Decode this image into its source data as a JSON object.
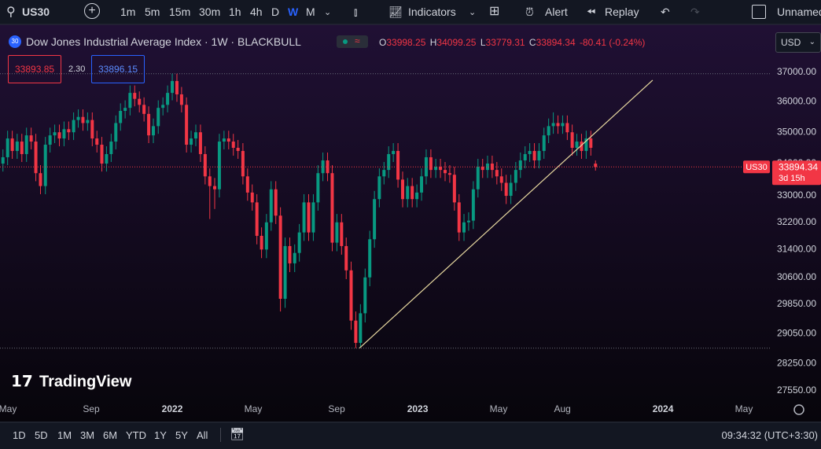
{
  "toolbar": {
    "symbol": "US30",
    "intervals": [
      "1m",
      "5m",
      "15m",
      "30m",
      "1h",
      "4h",
      "D",
      "W",
      "M"
    ],
    "indicators": "Indicators",
    "alert": "Alert",
    "replay": "Replay",
    "layout": "Unnamed"
  },
  "legend": {
    "badge": "30",
    "title": "Dow Jones Industrial Average Index · 1W · BLACKBULL",
    "o": "O",
    "h": "H",
    "l": "L",
    "c": "C",
    "change": "-80.41 (-0.24%)",
    "sell": "33893.85",
    "spread": "2.30",
    "buy": "33896.15",
    "currency": "USD"
  },
  "bottom": {
    "ranges": [
      "1D",
      "5D",
      "1M",
      "3M",
      "6M",
      "YTD",
      "1Y",
      "5Y",
      "All"
    ],
    "clock": "09:34:32 (UTC+3:30)"
  },
  "logo": "TradingView",
  "chart_data": {
    "type": "candlestick",
    "log": true,
    "up_color": "#089981",
    "down_color": "#f23645",
    "symbol_tag": "US30",
    "countdown": "3d 15h",
    "xlim": [
      2021.298,
      2024.503
    ],
    "ylim": [
      27330,
      38480
    ],
    "xticks": [
      {
        "value": 2021.33,
        "label": "May"
      },
      {
        "value": 2021.67,
        "label": "Sep"
      },
      2022,
      {
        "value": 2022.33,
        "label": "May"
      },
      {
        "value": 2022.67,
        "label": "Sep"
      },
      2023,
      {
        "value": 2023.33,
        "label": "May"
      },
      {
        "value": 2023.59,
        "label": "Aug"
      },
      2024,
      {
        "value": 2024.33,
        "label": "May"
      }
    ],
    "yticks": [
      {
        "value": 27550,
        "label": "27550.00"
      },
      {
        "value": 28250,
        "label": "28250.00"
      },
      {
        "value": 29050,
        "label": "29050.00"
      },
      {
        "value": 29850,
        "label": "29850.00"
      },
      {
        "value": 30600,
        "label": "30600.00"
      },
      {
        "value": 31400,
        "label": "31400.00"
      },
      {
        "value": 32200,
        "label": "32200.00"
      },
      {
        "value": 33000,
        "label": "33000.00"
      },
      {
        "value": 34000,
        "label": "34000.00"
      },
      {
        "value": 35000,
        "label": "35000.00"
      },
      {
        "value": 36000,
        "label": "36000.00"
      },
      {
        "value": 37000,
        "label": "37000.00"
      }
    ],
    "hlines": [
      36950,
      28660
    ],
    "trendline": {
      "x": [
        2022.763,
        2023.958
      ],
      "y": [
        28660,
        36730
      ],
      "color": "#e8d9a0"
    },
    "x": [
      2021.31,
      2021.329,
      2021.348,
      2021.368,
      2021.387,
      2021.406,
      2021.425,
      2021.444,
      2021.463,
      2021.483,
      2021.502,
      2021.521,
      2021.54,
      2021.559,
      2021.578,
      2021.598,
      2021.617,
      2021.636,
      2021.655,
      2021.674,
      2021.693,
      2021.713,
      2021.732,
      2021.751,
      2021.77,
      2021.789,
      2021.808,
      2021.828,
      2021.847,
      2021.866,
      2021.885,
      2021.904,
      2021.923,
      2021.943,
      2021.962,
      2021.981,
      2022.0,
      2022.019,
      2022.038,
      2022.058,
      2022.077,
      2022.096,
      2022.115,
      2022.134,
      2022.153,
      2022.173,
      2022.192,
      2022.211,
      2022.23,
      2022.249,
      2022.268,
      2022.288,
      2022.307,
      2022.326,
      2022.345,
      2022.364,
      2022.384,
      2022.403,
      2022.422,
      2022.441,
      2022.46,
      2022.479,
      2022.499,
      2022.518,
      2022.537,
      2022.556,
      2022.575,
      2022.594,
      2022.614,
      2022.633,
      2022.652,
      2022.671,
      2022.69,
      2022.709,
      2022.729,
      2022.748,
      2022.767,
      2022.786,
      2022.805,
      2022.824,
      2022.844,
      2022.863,
      2022.882,
      2022.901,
      2022.92,
      2022.939,
      2022.959,
      2022.978,
      2022.997,
      2023.016,
      2023.035,
      2023.054,
      2023.074,
      2023.093,
      2023.112,
      2023.131,
      2023.15,
      2023.169,
      2023.189,
      2023.208,
      2023.227,
      2023.246,
      2023.265,
      2023.285,
      2023.304,
      2023.323,
      2023.342,
      2023.361,
      2023.38,
      2023.4,
      2023.419,
      2023.438,
      2023.457,
      2023.476,
      2023.495,
      2023.515,
      2023.534,
      2023.553,
      2023.572,
      2023.591,
      2023.61,
      2023.63,
      2023.649,
      2023.668,
      2023.687,
      2023.706,
      2023.725
    ],
    "open": [
      34000,
      34200,
      34800,
      34400,
      34700,
      34300,
      34900,
      34700,
      33700,
      33300,
      34600,
      34900,
      35000,
      34800,
      35100,
      35000,
      35400,
      35500,
      35300,
      35400,
      34800,
      34600,
      34000,
      34300,
      34700,
      35300,
      35700,
      35800,
      36300,
      36100,
      35900,
      35600,
      34900,
      35200,
      35800,
      35900,
      36300,
      36700,
      36250,
      35900,
      34600,
      34800,
      35000,
      34300,
      33600,
      33300,
      33200,
      34700,
      34800,
      34700,
      34500,
      34400,
      33600,
      33100,
      32800,
      31800,
      31400,
      32200,
      33200,
      32400,
      30000,
      31500,
      31000,
      31300,
      31900,
      32800,
      31900,
      32800,
      33700,
      34100,
      33700,
      31600,
      32200,
      31500,
      30800,
      29400,
      28800,
      29600,
      30600,
      31700,
      32900,
      33600,
      33800,
      34300,
      34400,
      33500,
      32900,
      33300,
      32900,
      33100,
      33600,
      34200,
      33800,
      33900,
      33800,
      33700,
      33650,
      32800,
      31900,
      32200,
      32250,
      33200,
      33900,
      33800,
      34000,
      33800,
      33600,
      33400,
      33000,
      33400,
      33800,
      34100,
      34300,
      34400,
      34100,
      34400,
      34900,
      35200,
      35300,
      35200,
      35300,
      35000,
      34500,
      34700,
      34400,
      34800,
      33998.25
    ],
    "high": [
      34450,
      35050,
      35050,
      34950,
      34950,
      35150,
      35150,
      34950,
      33950,
      34850,
      35150,
      35250,
      35250,
      35350,
      35350,
      35650,
      35750,
      35750,
      35650,
      35650,
      35050,
      34850,
      34550,
      34950,
      35550,
      35950,
      36050,
      36550,
      36550,
      36350,
      36150,
      35850,
      35450,
      36050,
      36150,
      36550,
      36950,
      36950,
      36500,
      36150,
      35050,
      35250,
      35250,
      34550,
      33850,
      33550,
      34950,
      35050,
      35050,
      34950,
      34750,
      34650,
      33850,
      33350,
      33050,
      32050,
      32450,
      33450,
      33450,
      32650,
      31750,
      31750,
      31550,
      32150,
      33050,
      33050,
      33050,
      33950,
      34350,
      34350,
      33950,
      32450,
      32450,
      31750,
      31050,
      29650,
      29850,
      30850,
      31950,
      33150,
      33850,
      34050,
      34550,
      34650,
      34650,
      33750,
      33550,
      33550,
      33350,
      33850,
      34450,
      34450,
      34150,
      34150,
      34050,
      33950,
      33900,
      33050,
      32450,
      32500,
      33450,
      34150,
      34150,
      34250,
      34250,
      34050,
      33850,
      33650,
      33650,
      34050,
      34350,
      34550,
      34650,
      34650,
      34650,
      35150,
      35450,
      35650,
      35550,
      35550,
      35550,
      35250,
      34950,
      34950,
      35050,
      35050,
      34099.25
    ],
    "low": [
      33750,
      33950,
      34150,
      34150,
      34050,
      34050,
      34450,
      33450,
      33050,
      33050,
      34350,
      34650,
      34550,
      34550,
      34750,
      34750,
      35150,
      35050,
      35050,
      34550,
      34350,
      33750,
      33750,
      34050,
      34450,
      35050,
      35450,
      35550,
      35850,
      35650,
      35350,
      34650,
      34650,
      34950,
      35550,
      35650,
      36050,
      36000,
      35650,
      34350,
      34350,
      34550,
      34050,
      33350,
      32300,
      32600,
      32950,
      34450,
      34450,
      34250,
      34150,
      33350,
      32850,
      32550,
      31550,
      31150,
      31150,
      31950,
      32150,
      29650,
      29750,
      30750,
      30750,
      31050,
      31650,
      31650,
      31650,
      32550,
      33450,
      33450,
      31350,
      31350,
      31250,
      30550,
      29150,
      28660,
      28700,
      29350,
      30350,
      31450,
      32650,
      33350,
      33550,
      34050,
      33250,
      32650,
      32650,
      32650,
      32650,
      32850,
      33350,
      33550,
      33550,
      33550,
      33450,
      33400,
      32550,
      31650,
      31650,
      31950,
      32000,
      32950,
      33550,
      33550,
      33550,
      33350,
      33150,
      32750,
      32750,
      33150,
      33550,
      33850,
      34050,
      33850,
      33850,
      34150,
      34650,
      34950,
      34950,
      34950,
      34750,
      34250,
      34250,
      34150,
      34150,
      34250,
      33779.31
    ],
    "close": [
      34200,
      34800,
      34400,
      34700,
      34300,
      34900,
      34700,
      33700,
      33300,
      34600,
      34900,
      35000,
      34800,
      35100,
      35000,
      35400,
      35500,
      35300,
      35400,
      34800,
      34600,
      34000,
      34300,
      34700,
      35300,
      35700,
      35800,
      36300,
      36100,
      35900,
      35600,
      34900,
      35200,
      35800,
      35900,
      36300,
      36700,
      36250,
      35900,
      34600,
      34800,
      35000,
      34300,
      33600,
      33300,
      33200,
      34700,
      34800,
      34700,
      34500,
      34400,
      33600,
      33100,
      32800,
      31800,
      31400,
      32200,
      33200,
      32400,
      30000,
      31500,
      31000,
      31300,
      31900,
      32800,
      31900,
      32800,
      33700,
      34100,
      33700,
      31600,
      32200,
      31500,
      30800,
      29400,
      28800,
      29600,
      30600,
      31700,
      32900,
      33600,
      33800,
      34300,
      34400,
      33500,
      32900,
      33300,
      32900,
      33100,
      33600,
      34200,
      33800,
      33900,
      33800,
      33700,
      33650,
      32800,
      31900,
      32200,
      32250,
      33200,
      33900,
      33800,
      34000,
      33800,
      33600,
      33400,
      33000,
      33400,
      33800,
      34100,
      34300,
      34400,
      34100,
      34400,
      34900,
      35200,
      35300,
      35200,
      35300,
      35000,
      34500,
      34700,
      34400,
      34800,
      34500,
      33894.34
    ]
  }
}
